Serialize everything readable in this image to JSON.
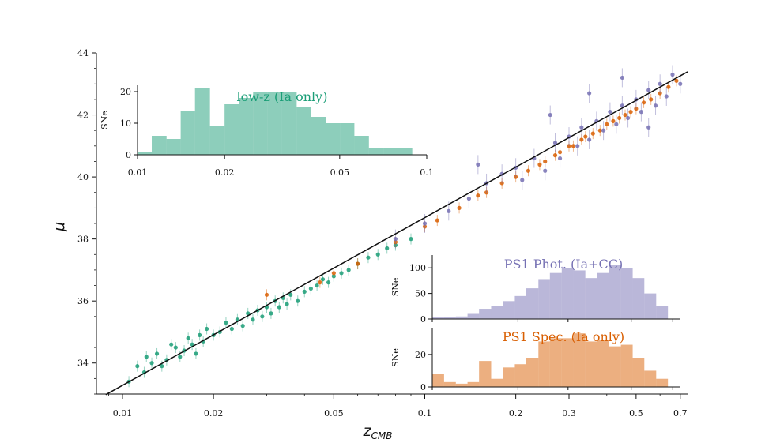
{
  "chart_data": {
    "type": "scatter",
    "x_scale": "log",
    "xlabel": "z",
    "xlabel_sub": "CMB",
    "ylabel": "μ",
    "xlim": [
      0.0082,
      0.74
    ],
    "ylim": [
      33.0,
      44.0
    ],
    "x_tick_labels": [
      {
        "value": 0.01,
        "label": "0.01"
      },
      {
        "value": 0.02,
        "label": "0.02"
      },
      {
        "value": 0.05,
        "label": "0.05"
      },
      {
        "value": 0.1,
        "label": "0.1"
      },
      {
        "value": 0.2,
        "label": "0.2"
      },
      {
        "value": 0.3,
        "label": "0.3"
      },
      {
        "value": 0.5,
        "label": "0.5"
      },
      {
        "value": 0.7,
        "label": "0.7"
      }
    ],
    "y_tick_labels": [
      {
        "value": 34,
        "label": "34"
      },
      {
        "value": 36,
        "label": "36"
      },
      {
        "value": 38,
        "label": "38"
      },
      {
        "value": 40,
        "label": "40"
      },
      {
        "value": 42,
        "label": "42"
      },
      {
        "value": 44,
        "label": "44"
      }
    ],
    "fit_line": {
      "x": [
        0.0088,
        0.74
      ],
      "y": [
        32.98,
        43.39
      ],
      "color": "#111111"
    },
    "series": [
      {
        "name": "low-z (Ia only)",
        "color": "#1b9e77",
        "points": [
          [
            0.0105,
            33.4
          ],
          [
            0.0112,
            33.9
          ],
          [
            0.0118,
            33.7
          ],
          [
            0.012,
            34.2
          ],
          [
            0.0125,
            34.0
          ],
          [
            0.013,
            34.3
          ],
          [
            0.0135,
            33.9
          ],
          [
            0.014,
            34.1
          ],
          [
            0.0145,
            34.6
          ],
          [
            0.015,
            34.5
          ],
          [
            0.0155,
            34.2
          ],
          [
            0.016,
            34.4
          ],
          [
            0.0165,
            34.8
          ],
          [
            0.017,
            34.6
          ],
          [
            0.0175,
            34.3
          ],
          [
            0.018,
            34.9
          ],
          [
            0.0185,
            34.7
          ],
          [
            0.019,
            35.1
          ],
          [
            0.02,
            34.9
          ],
          [
            0.021,
            35.0
          ],
          [
            0.022,
            35.3
          ],
          [
            0.023,
            35.1
          ],
          [
            0.024,
            35.4
          ],
          [
            0.025,
            35.2
          ],
          [
            0.026,
            35.6
          ],
          [
            0.027,
            35.4
          ],
          [
            0.028,
            35.7
          ],
          [
            0.029,
            35.5
          ],
          [
            0.03,
            35.8
          ],
          [
            0.031,
            35.6
          ],
          [
            0.032,
            36.0
          ],
          [
            0.033,
            35.8
          ],
          [
            0.034,
            36.1
          ],
          [
            0.035,
            35.9
          ],
          [
            0.036,
            36.2
          ],
          [
            0.038,
            36.0
          ],
          [
            0.04,
            36.3
          ],
          [
            0.042,
            36.4
          ],
          [
            0.044,
            36.5
          ],
          [
            0.046,
            36.7
          ],
          [
            0.048,
            36.6
          ],
          [
            0.05,
            36.8
          ],
          [
            0.053,
            36.9
          ],
          [
            0.056,
            37.0
          ],
          [
            0.06,
            37.2
          ],
          [
            0.065,
            37.4
          ],
          [
            0.07,
            37.5
          ],
          [
            0.075,
            37.7
          ],
          [
            0.08,
            37.8
          ],
          [
            0.09,
            38.0
          ]
        ]
      },
      {
        "name": "PS1 Spec. (Ia only)",
        "color": "#d95f02",
        "points": [
          [
            0.03,
            36.2
          ],
          [
            0.045,
            36.6
          ],
          [
            0.05,
            36.9
          ],
          [
            0.06,
            37.2
          ],
          [
            0.08,
            37.9
          ],
          [
            0.1,
            38.4
          ],
          [
            0.11,
            38.6
          ],
          [
            0.13,
            39.0
          ],
          [
            0.15,
            39.4
          ],
          [
            0.16,
            39.5
          ],
          [
            0.18,
            39.8
          ],
          [
            0.2,
            40.0
          ],
          [
            0.22,
            40.2
          ],
          [
            0.24,
            40.4
          ],
          [
            0.25,
            40.5
          ],
          [
            0.27,
            40.7
          ],
          [
            0.28,
            40.8
          ],
          [
            0.3,
            41.0
          ],
          [
            0.31,
            41.0
          ],
          [
            0.33,
            41.2
          ],
          [
            0.34,
            41.3
          ],
          [
            0.36,
            41.4
          ],
          [
            0.38,
            41.5
          ],
          [
            0.4,
            41.7
          ],
          [
            0.42,
            41.8
          ],
          [
            0.44,
            41.9
          ],
          [
            0.46,
            42.0
          ],
          [
            0.48,
            42.1
          ],
          [
            0.5,
            42.2
          ],
          [
            0.53,
            42.4
          ],
          [
            0.56,
            42.5
          ],
          [
            0.6,
            42.7
          ],
          [
            0.64,
            42.9
          ],
          [
            0.68,
            43.1
          ]
        ]
      },
      {
        "name": "PS1 Phot. (Ia+CC)",
        "color": "#7570b3",
        "points": [
          [
            0.08,
            38.0
          ],
          [
            0.1,
            38.5
          ],
          [
            0.12,
            38.9
          ],
          [
            0.14,
            39.3
          ],
          [
            0.16,
            39.8
          ],
          [
            0.18,
            40.1
          ],
          [
            0.2,
            40.3
          ],
          [
            0.21,
            39.9
          ],
          [
            0.23,
            40.6
          ],
          [
            0.25,
            40.2
          ],
          [
            0.27,
            41.1
          ],
          [
            0.28,
            40.6
          ],
          [
            0.3,
            41.3
          ],
          [
            0.32,
            41.0
          ],
          [
            0.33,
            41.6
          ],
          [
            0.35,
            41.2
          ],
          [
            0.37,
            41.8
          ],
          [
            0.39,
            41.5
          ],
          [
            0.41,
            42.1
          ],
          [
            0.43,
            41.7
          ],
          [
            0.45,
            42.3
          ],
          [
            0.47,
            41.9
          ],
          [
            0.5,
            42.5
          ],
          [
            0.52,
            42.1
          ],
          [
            0.55,
            42.8
          ],
          [
            0.58,
            42.3
          ],
          [
            0.6,
            43.0
          ],
          [
            0.63,
            42.6
          ],
          [
            0.66,
            43.3
          ],
          [
            0.7,
            43.0
          ],
          [
            0.26,
            42.0
          ],
          [
            0.35,
            42.7
          ],
          [
            0.45,
            43.2
          ],
          [
            0.15,
            40.4
          ],
          [
            0.55,
            41.6
          ]
        ]
      }
    ],
    "insets": [
      {
        "title": "low-z (Ia only)",
        "color": "#1b9e77",
        "ylabel": "SNe",
        "xlim": [
          0.01,
          0.1
        ],
        "ylim": [
          0,
          22
        ],
        "y_tick_labels": [
          {
            "value": 0,
            "label": "0"
          },
          {
            "value": 10,
            "label": "10"
          },
          {
            "value": 20,
            "label": "20"
          }
        ],
        "x_tick_labels": [
          {
            "value": 0.01,
            "label": "0.01"
          },
          {
            "value": 0.02,
            "label": "0.02"
          },
          {
            "value": 0.05,
            "label": "0.05"
          },
          {
            "value": 0.1,
            "label": "0.1"
          }
        ],
        "bin_edges": [
          0.01,
          0.0112,
          0.0126,
          0.0141,
          0.0158,
          0.0178,
          0.02,
          0.0224,
          0.0251,
          0.0282,
          0.0316,
          0.0355,
          0.0398,
          0.0447,
          0.0501,
          0.0562,
          0.0631,
          0.0708,
          0.0794,
          0.0891
        ],
        "counts": [
          1,
          6,
          5,
          14,
          21,
          9,
          16,
          18,
          20,
          20,
          20,
          15,
          12,
          10,
          10,
          6,
          2,
          2,
          2
        ]
      },
      {
        "title": "PS1 Phot. (Ia+CC)",
        "color": "#7570b3",
        "ylabel": "SNe",
        "xlim": [
          0.1,
          0.74
        ],
        "ylim": [
          0,
          125
        ],
        "y_tick_labels": [
          {
            "value": 0,
            "label": "0"
          },
          {
            "value": 50,
            "label": "50"
          },
          {
            "value": 100,
            "label": "100"
          }
        ],
        "bin_edges": [
          0.1,
          0.11,
          0.121,
          0.133,
          0.146,
          0.161,
          0.177,
          0.195,
          0.214,
          0.236,
          0.259,
          0.285,
          0.314,
          0.345,
          0.38,
          0.418,
          0.46,
          0.506,
          0.556,
          0.612,
          0.673
        ],
        "counts": [
          3,
          4,
          5,
          10,
          20,
          25,
          35,
          45,
          60,
          78,
          90,
          100,
          95,
          80,
          90,
          105,
          100,
          80,
          50,
          25
        ]
      },
      {
        "title": "PS1 Spec. (Ia only)",
        "color": "#d95f02",
        "ylabel": "SNe",
        "xlim": [
          0.1,
          0.74
        ],
        "ylim": [
          0,
          36
        ],
        "y_tick_labels": [
          {
            "value": 0,
            "label": "0"
          },
          {
            "value": 20,
            "label": "20"
          }
        ],
        "bin_edges": [
          0.1,
          0.11,
          0.121,
          0.133,
          0.146,
          0.161,
          0.177,
          0.195,
          0.214,
          0.236,
          0.259,
          0.285,
          0.314,
          0.345,
          0.38,
          0.418,
          0.46,
          0.506,
          0.556,
          0.612,
          0.673
        ],
        "counts": [
          8,
          3,
          2,
          3,
          16,
          5,
          12,
          14,
          18,
          28,
          30,
          30,
          33,
          28,
          29,
          25,
          26,
          18,
          10,
          5
        ]
      }
    ]
  }
}
